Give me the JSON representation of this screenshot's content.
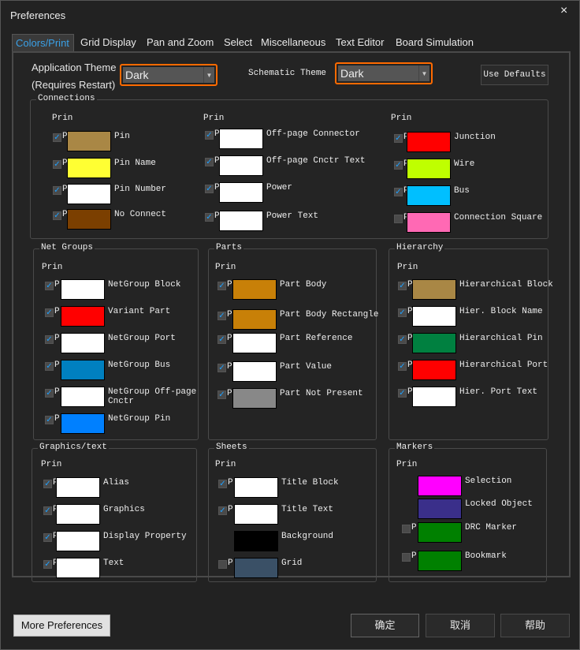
{
  "window": {
    "title": "Preferences",
    "close": "×"
  },
  "tabs": [
    "Colors/Print",
    "Grid Display",
    "Pan and Zoom",
    "Select",
    "Miscellaneous",
    "Text Editor",
    "Board Simulation"
  ],
  "theme": {
    "app_label_1": "Application Theme",
    "app_label_2": "(Requires Restart)",
    "app_value": "Dark",
    "schematic_label": "Schematic Theme",
    "schematic_value": "Dark",
    "accent": "#ff6a00",
    "use_defaults": "Use Defaults"
  },
  "groups": [
    {
      "name": "Connections",
      "print_label": "Print",
      "items": [
        {
          "label": "Pin",
          "color": "#a98745",
          "checked": true
        },
        {
          "label": "Pin Name",
          "color": "#ffff33",
          "checked": true
        },
        {
          "label": "Pin Number",
          "color": "#ffffff",
          "checked": true
        },
        {
          "label": "No Connect",
          "color": "#7b3f00",
          "checked": true
        },
        {
          "label": "Off-page Connector",
          "color": "#ffffff",
          "checked": true
        },
        {
          "label": "Off-page Cnctr Text",
          "color": "#ffffff",
          "checked": true
        },
        {
          "label": "Power",
          "color": "#ffffff",
          "checked": true
        },
        {
          "label": "Power Text",
          "color": "#ffffff",
          "checked": true
        },
        {
          "label": "Junction",
          "color": "#ff0000",
          "checked": true
        },
        {
          "label": "Wire",
          "color": "#bfff00",
          "checked": true
        },
        {
          "label": "Bus",
          "color": "#00bfff",
          "checked": true
        },
        {
          "label": "Connection Square",
          "color": "#ff69b4",
          "checked": false
        }
      ]
    },
    {
      "name": "Net Groups",
      "print_label": "Print",
      "items": [
        {
          "label": "NetGroup Block",
          "color": "#ffffff",
          "checked": true
        },
        {
          "label": "Variant Part",
          "color": "#ff0000",
          "checked": true
        },
        {
          "label": "NetGroup Port",
          "color": "#ffffff",
          "checked": true
        },
        {
          "label": "NetGroup Bus",
          "color": "#0080c0",
          "checked": true
        },
        {
          "label": "NetGroup Off-page Cnctr",
          "color": "#ffffff",
          "checked": true
        },
        {
          "label": "NetGroup Pin",
          "color": "#0080ff",
          "checked": true
        }
      ]
    },
    {
      "name": "Parts",
      "print_label": "Print",
      "items": [
        {
          "label": "Part Body",
          "color": "#c88008",
          "checked": true
        },
        {
          "label": "Part Body Rectangle",
          "color": "#c88008",
          "checked": true
        },
        {
          "label": "Part Reference",
          "color": "#ffffff",
          "checked": true
        },
        {
          "label": "Part Value",
          "color": "#ffffff",
          "checked": true
        },
        {
          "label": "Part Not Present",
          "color": "#888888",
          "checked": true
        }
      ]
    },
    {
      "name": "Hierarchy",
      "print_label": "Print",
      "items": [
        {
          "label": "Hierarchical Block",
          "color": "#a98745",
          "checked": true
        },
        {
          "label": "Hier. Block Name",
          "color": "#ffffff",
          "checked": true
        },
        {
          "label": "Hierarchical Pin",
          "color": "#008040",
          "checked": true
        },
        {
          "label": "Hierarchical Port",
          "color": "#ff0000",
          "checked": true
        },
        {
          "label": "Hier. Port Text",
          "color": "#ffffff",
          "checked": true
        }
      ]
    },
    {
      "name": "Graphics/text",
      "print_label": "Print",
      "items": [
        {
          "label": "Alias",
          "color": "#ffffff",
          "checked": true
        },
        {
          "label": "Graphics",
          "color": "#ffffff",
          "checked": true
        },
        {
          "label": "Display Property",
          "color": "#ffffff",
          "checked": true
        },
        {
          "label": "Text",
          "color": "#ffffff",
          "checked": true
        }
      ]
    },
    {
      "name": "Sheets",
      "print_label": "Print",
      "items": [
        {
          "label": "Title Block",
          "color": "#ffffff",
          "checked": true
        },
        {
          "label": "Title Text",
          "color": "#ffffff",
          "checked": true
        },
        {
          "label": "Background",
          "color": "#000000",
          "checked": null
        },
        {
          "label": "Grid",
          "color": "#3a5066",
          "checked": false
        }
      ]
    },
    {
      "name": "Markers",
      "print_label": "Print",
      "items": [
        {
          "label": "Selection",
          "color": "#ff00ff",
          "checked": null
        },
        {
          "label": "Locked Object",
          "color": "#3a2f8a",
          "checked": null
        },
        {
          "label": "DRC Marker",
          "color": "#008000",
          "checked": false
        },
        {
          "label": "Bookmark",
          "color": "#008000",
          "checked": false
        }
      ]
    }
  ],
  "footer": {
    "more": "More Preferences",
    "ok": "确定",
    "cancel": "取消",
    "help": "帮助"
  }
}
